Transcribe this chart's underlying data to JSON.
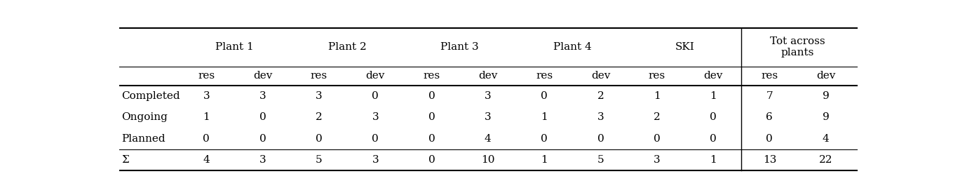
{
  "col_groups": [
    {
      "label": "Plant 1",
      "cols": [
        "res",
        "dev"
      ]
    },
    {
      "label": "Plant 2",
      "cols": [
        "res",
        "dev"
      ]
    },
    {
      "label": "Plant 3",
      "cols": [
        "res",
        "dev"
      ]
    },
    {
      "label": "Plant 4",
      "cols": [
        "res",
        "dev"
      ]
    },
    {
      "label": "SKI",
      "cols": [
        "res",
        "dev"
      ]
    },
    {
      "label": "Tot across\nplants",
      "cols": [
        "res",
        "dev"
      ]
    }
  ],
  "row_labels": [
    "Completed",
    "Ongoing",
    "Planned",
    "Σ"
  ],
  "data": [
    [
      3,
      3,
      3,
      0,
      0,
      3,
      0,
      2,
      1,
      1,
      7,
      9
    ],
    [
      1,
      0,
      2,
      3,
      0,
      3,
      1,
      3,
      2,
      0,
      6,
      9
    ],
    [
      0,
      0,
      0,
      0,
      0,
      4,
      0,
      0,
      0,
      0,
      0,
      4
    ],
    [
      4,
      3,
      5,
      3,
      0,
      10,
      1,
      5,
      3,
      1,
      13,
      22
    ]
  ],
  "background_color": "#ffffff",
  "text_color": "#000000",
  "line_color": "#000000",
  "font_size": 11,
  "header_font_size": 11
}
